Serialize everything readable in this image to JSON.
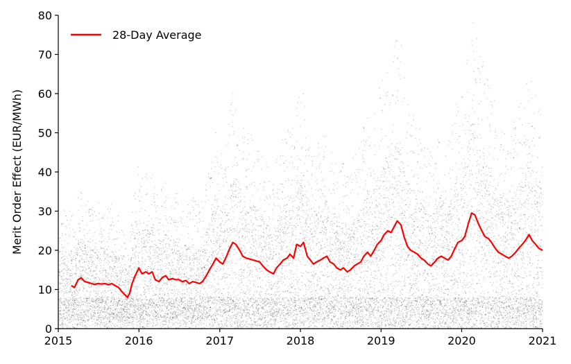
{
  "chart_data": {
    "type": "scatter",
    "title": "",
    "xlabel": "",
    "ylabel": "Merit Order Effect (EUR/MWh)",
    "xlim": [
      "2015-01-01",
      "2021-01-01"
    ],
    "ylim": [
      0,
      80
    ],
    "x_ticks": [
      "2015",
      "2016",
      "2017",
      "2018",
      "2019",
      "2020",
      "2021"
    ],
    "y_ticks": [
      0,
      10,
      20,
      30,
      40,
      50,
      60,
      70,
      80
    ],
    "grid": false,
    "legend": {
      "position": "top-left",
      "entries": [
        "28-Day Average"
      ]
    },
    "series": [
      {
        "name": "",
        "kind": "scatter",
        "color": "#000000",
        "note": "dense hourly points, approx. 0-78 EUR/MWh"
      },
      {
        "name": "28-Day Average",
        "kind": "line",
        "color": "#ff0000",
        "points": [
          [
            "2015-03-01",
            11
          ],
          [
            "2015-03-15",
            10.5
          ],
          [
            "2015-04-01",
            12.5
          ],
          [
            "2015-04-15",
            13
          ],
          [
            "2015-05-01",
            12
          ],
          [
            "2015-05-15",
            11.8
          ],
          [
            "2015-06-01",
            11.5
          ],
          [
            "2015-06-15",
            11.3
          ],
          [
            "2015-07-01",
            11.5
          ],
          [
            "2015-07-15",
            11.4
          ],
          [
            "2015-08-01",
            11.5
          ],
          [
            "2015-08-15",
            11.2
          ],
          [
            "2015-09-01",
            11.5
          ],
          [
            "2015-09-15",
            11.0
          ],
          [
            "2015-10-01",
            10.5
          ],
          [
            "2015-10-15",
            9.5
          ],
          [
            "2015-11-01",
            8.5
          ],
          [
            "2015-11-10",
            8.0
          ],
          [
            "2015-11-20",
            9.0
          ],
          [
            "2015-12-01",
            11.5
          ],
          [
            "2015-12-15",
            13.5
          ],
          [
            "2016-01-01",
            15.5
          ],
          [
            "2016-01-15",
            14.0
          ],
          [
            "2016-02-01",
            14.5
          ],
          [
            "2016-02-15",
            14.0
          ],
          [
            "2016-03-01",
            14.5
          ],
          [
            "2016-03-15",
            12.5
          ],
          [
            "2016-04-01",
            12.0
          ],
          [
            "2016-04-15",
            13.0
          ],
          [
            "2016-05-01",
            13.5
          ],
          [
            "2016-05-15",
            12.5
          ],
          [
            "2016-06-01",
            12.8
          ],
          [
            "2016-06-15",
            12.5
          ],
          [
            "2016-07-01",
            12.5
          ],
          [
            "2016-07-15",
            12.0
          ],
          [
            "2016-08-01",
            12.3
          ],
          [
            "2016-08-15",
            11.5
          ],
          [
            "2016-09-01",
            12.0
          ],
          [
            "2016-09-15",
            11.8
          ],
          [
            "2016-10-01",
            11.5
          ],
          [
            "2016-10-15",
            12.0
          ],
          [
            "2016-11-01",
            13.5
          ],
          [
            "2016-11-15",
            15.0
          ],
          [
            "2016-12-01",
            16.5
          ],
          [
            "2016-12-15",
            18.0
          ],
          [
            "2017-01-01",
            17.0
          ],
          [
            "2017-01-15",
            16.5
          ],
          [
            "2017-02-01",
            18.5
          ],
          [
            "2017-02-15",
            20.5
          ],
          [
            "2017-03-01",
            22.0
          ],
          [
            "2017-03-15",
            21.5
          ],
          [
            "2017-04-01",
            20.0
          ],
          [
            "2017-04-15",
            18.5
          ],
          [
            "2017-05-01",
            18.0
          ],
          [
            "2017-05-15",
            17.8
          ],
          [
            "2017-06-01",
            17.5
          ],
          [
            "2017-06-15",
            17.3
          ],
          [
            "2017-07-01",
            17.0
          ],
          [
            "2017-07-15",
            16.0
          ],
          [
            "2017-08-01",
            15.0
          ],
          [
            "2017-08-15",
            14.5
          ],
          [
            "2017-09-01",
            14.0
          ],
          [
            "2017-09-15",
            15.5
          ],
          [
            "2017-10-01",
            16.5
          ],
          [
            "2017-10-15",
            17.5
          ],
          [
            "2017-11-01",
            18.0
          ],
          [
            "2017-11-15",
            19.0
          ],
          [
            "2017-12-01",
            18.0
          ],
          [
            "2017-12-15",
            21.5
          ],
          [
            "2018-01-01",
            21.0
          ],
          [
            "2018-01-15",
            22.0
          ],
          [
            "2018-02-01",
            18.5
          ],
          [
            "2018-02-15",
            17.5
          ],
          [
            "2018-03-01",
            16.5
          ],
          [
            "2018-03-15",
            17.0
          ],
          [
            "2018-04-01",
            17.5
          ],
          [
            "2018-04-15",
            18.0
          ],
          [
            "2018-05-01",
            18.5
          ],
          [
            "2018-05-15",
            17.0
          ],
          [
            "2018-06-01",
            16.5
          ],
          [
            "2018-06-15",
            15.5
          ],
          [
            "2018-07-01",
            15.0
          ],
          [
            "2018-07-15",
            15.5
          ],
          [
            "2018-08-01",
            14.5
          ],
          [
            "2018-08-15",
            15.0
          ],
          [
            "2018-09-01",
            16.0
          ],
          [
            "2018-09-15",
            16.5
          ],
          [
            "2018-10-01",
            17.0
          ],
          [
            "2018-10-15",
            18.5
          ],
          [
            "2018-11-01",
            19.5
          ],
          [
            "2018-11-15",
            18.5
          ],
          [
            "2018-12-01",
            20.0
          ],
          [
            "2018-12-15",
            21.5
          ],
          [
            "2019-01-01",
            22.5
          ],
          [
            "2019-01-15",
            24.0
          ],
          [
            "2019-02-01",
            25.0
          ],
          [
            "2019-02-15",
            24.5
          ],
          [
            "2019-03-01",
            26.0
          ],
          [
            "2019-03-15",
            27.5
          ],
          [
            "2019-04-01",
            26.5
          ],
          [
            "2019-04-15",
            23.5
          ],
          [
            "2019-05-01",
            21.0
          ],
          [
            "2019-05-15",
            20.0
          ],
          [
            "2019-06-01",
            19.5
          ],
          [
            "2019-06-15",
            19.0
          ],
          [
            "2019-07-01",
            18.0
          ],
          [
            "2019-07-15",
            17.5
          ],
          [
            "2019-08-01",
            16.5
          ],
          [
            "2019-08-15",
            16.0
          ],
          [
            "2019-09-01",
            17.0
          ],
          [
            "2019-09-15",
            18.0
          ],
          [
            "2019-10-01",
            18.5
          ],
          [
            "2019-10-15",
            18.0
          ],
          [
            "2019-11-01",
            17.5
          ],
          [
            "2019-11-15",
            18.5
          ],
          [
            "2019-12-01",
            20.5
          ],
          [
            "2019-12-15",
            22.0
          ],
          [
            "2020-01-01",
            22.5
          ],
          [
            "2020-01-15",
            23.5
          ],
          [
            "2020-02-01",
            27.0
          ],
          [
            "2020-02-15",
            29.5
          ],
          [
            "2020-03-01",
            29.0
          ],
          [
            "2020-03-15",
            27.0
          ],
          [
            "2020-04-01",
            25.0
          ],
          [
            "2020-04-15",
            23.5
          ],
          [
            "2020-05-01",
            23.0
          ],
          [
            "2020-05-15",
            22.0
          ],
          [
            "2020-06-01",
            20.5
          ],
          [
            "2020-06-15",
            19.5
          ],
          [
            "2020-07-01",
            19.0
          ],
          [
            "2020-07-15",
            18.5
          ],
          [
            "2020-08-01",
            18.0
          ],
          [
            "2020-08-15",
            18.5
          ],
          [
            "2020-09-01",
            19.5
          ],
          [
            "2020-09-15",
            20.5
          ],
          [
            "2020-10-01",
            21.5
          ],
          [
            "2020-10-15",
            22.5
          ],
          [
            "2020-11-01",
            24.0
          ],
          [
            "2020-11-15",
            22.5
          ],
          [
            "2020-12-01",
            21.5
          ],
          [
            "2020-12-15",
            20.5
          ],
          [
            "2021-01-01",
            20.0
          ]
        ]
      }
    ]
  }
}
